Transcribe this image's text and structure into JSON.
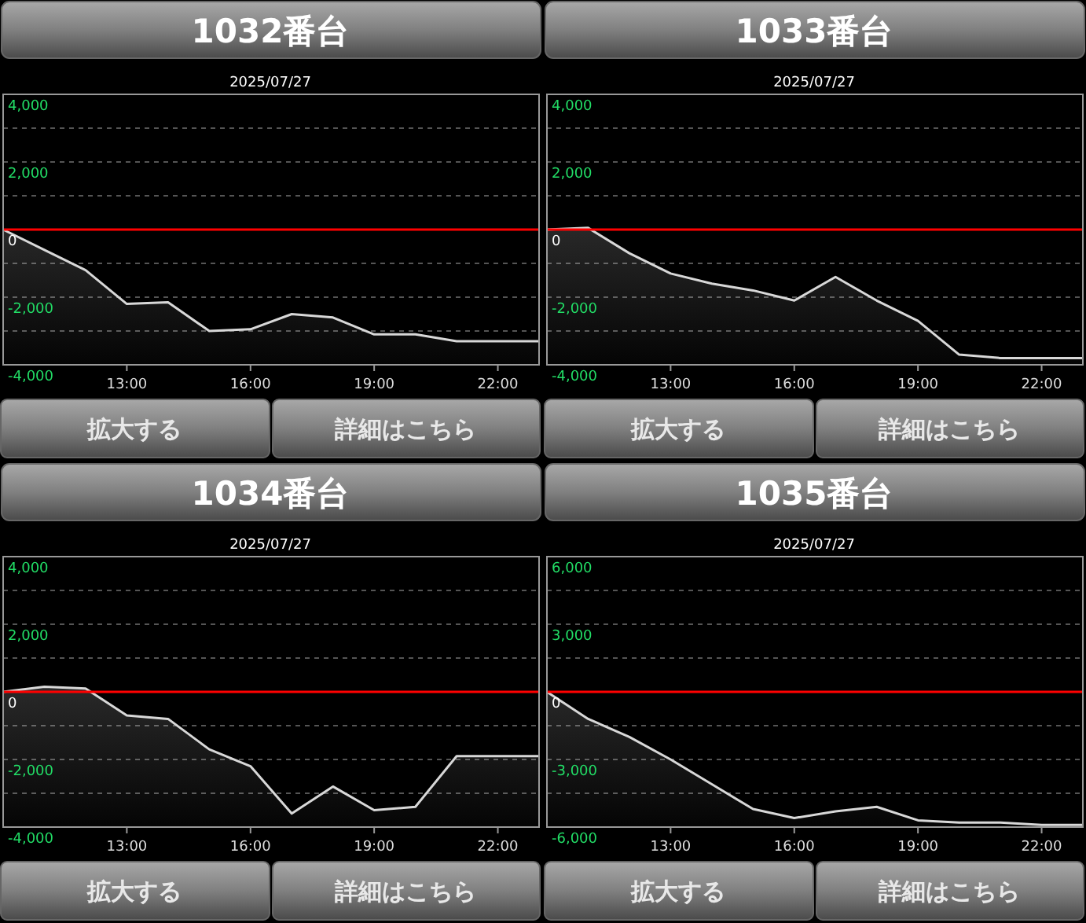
{
  "chart_data": [
    {
      "type": "line",
      "title": "1032番台",
      "subtitle": "2025/07/27",
      "x": [
        10,
        11,
        12,
        13,
        14,
        15,
        16,
        17,
        18,
        19,
        20,
        21,
        22,
        23
      ],
      "xlim": [
        10,
        23
      ],
      "xticks": [
        {
          "value": 13,
          "label": "13:00"
        },
        {
          "value": 16,
          "label": "16:00"
        },
        {
          "value": 19,
          "label": "19:00"
        },
        {
          "value": 22,
          "label": "22:00"
        }
      ],
      "ylim": [
        -4000,
        4000
      ],
      "yticks": [
        {
          "value": -4000,
          "label": "-4,000"
        },
        {
          "value": -3000,
          "label": null
        },
        {
          "value": -2000,
          "label": "-2,000"
        },
        {
          "value": -1000,
          "label": null
        },
        {
          "value": 0,
          "label": "0"
        },
        {
          "value": 1000,
          "label": null
        },
        {
          "value": 2000,
          "label": "2,000"
        },
        {
          "value": 3000,
          "label": null
        },
        {
          "value": 4000,
          "label": "4,000"
        }
      ],
      "grid": "y",
      "series": [
        {
          "color": "#d8d8d8",
          "values": [
            0,
            -600,
            -1200,
            -2200,
            -2150,
            -3000,
            -2950,
            -2500,
            -2600,
            -3100,
            -3100,
            -3300,
            -3300,
            -3300
          ]
        }
      ],
      "ref_lines": [
        {
          "axis": "y",
          "value": 0,
          "color": "#ff0000"
        }
      ],
      "annotations": [
        "拡大する",
        "詳細はこちら"
      ]
    },
    {
      "type": "line",
      "title": "1033番台",
      "subtitle": "2025/07/27",
      "x": [
        10,
        11,
        12,
        13,
        14,
        15,
        16,
        17,
        18,
        19,
        20,
        21,
        22,
        23
      ],
      "xlim": [
        10,
        23
      ],
      "xticks": [
        {
          "value": 13,
          "label": "13:00"
        },
        {
          "value": 16,
          "label": "16:00"
        },
        {
          "value": 19,
          "label": "19:00"
        },
        {
          "value": 22,
          "label": "22:00"
        }
      ],
      "ylim": [
        -4000,
        4000
      ],
      "yticks": [
        {
          "value": -4000,
          "label": "-4,000"
        },
        {
          "value": -3000,
          "label": null
        },
        {
          "value": -2000,
          "label": "-2,000"
        },
        {
          "value": -1000,
          "label": null
        },
        {
          "value": 0,
          "label": "0"
        },
        {
          "value": 1000,
          "label": null
        },
        {
          "value": 2000,
          "label": "2,000"
        },
        {
          "value": 3000,
          "label": null
        },
        {
          "value": 4000,
          "label": "4,000"
        }
      ],
      "grid": "y",
      "series": [
        {
          "color": "#d8d8d8",
          "values": [
            0,
            50,
            -700,
            -1300,
            -1600,
            -1800,
            -2100,
            -1400,
            -2100,
            -2700,
            -3700,
            -3800,
            -3800,
            -3800
          ]
        }
      ],
      "ref_lines": [
        {
          "axis": "y",
          "value": 0,
          "color": "#ff0000"
        }
      ],
      "annotations": [
        "拡大する",
        "詳細はこちら"
      ]
    },
    {
      "type": "line",
      "title": "1034番台",
      "subtitle": "2025/07/27",
      "x": [
        10,
        11,
        12,
        13,
        14,
        15,
        16,
        17,
        18,
        19,
        20,
        21,
        22,
        23
      ],
      "xlim": [
        10,
        23
      ],
      "xticks": [
        {
          "value": 13,
          "label": "13:00"
        },
        {
          "value": 16,
          "label": "16:00"
        },
        {
          "value": 19,
          "label": "19:00"
        },
        {
          "value": 22,
          "label": "22:00"
        }
      ],
      "ylim": [
        -4000,
        4000
      ],
      "yticks": [
        {
          "value": -4000,
          "label": "-4,000"
        },
        {
          "value": -3000,
          "label": null
        },
        {
          "value": -2000,
          "label": "-2,000"
        },
        {
          "value": -1000,
          "label": null
        },
        {
          "value": 0,
          "label": "0"
        },
        {
          "value": 1000,
          "label": null
        },
        {
          "value": 2000,
          "label": "2,000"
        },
        {
          "value": 3000,
          "label": null
        },
        {
          "value": 4000,
          "label": "4,000"
        }
      ],
      "grid": "y",
      "series": [
        {
          "color": "#d8d8d8",
          "values": [
            0,
            150,
            100,
            -700,
            -800,
            -1700,
            -2200,
            -3600,
            -2800,
            -3500,
            -3400,
            -1900,
            -1900,
            -1900
          ]
        }
      ],
      "ref_lines": [
        {
          "axis": "y",
          "value": 0,
          "color": "#ff0000"
        }
      ],
      "annotations": [
        "拡大する",
        "詳細はこちら"
      ]
    },
    {
      "type": "line",
      "title": "1035番台",
      "subtitle": "2025/07/27",
      "x": [
        10,
        11,
        12,
        13,
        14,
        15,
        16,
        17,
        18,
        19,
        20,
        21,
        22,
        23
      ],
      "xlim": [
        10,
        23
      ],
      "xticks": [
        {
          "value": 13,
          "label": "13:00"
        },
        {
          "value": 16,
          "label": "16:00"
        },
        {
          "value": 19,
          "label": "19:00"
        },
        {
          "value": 22,
          "label": "22:00"
        }
      ],
      "ylim": [
        -6000,
        6000
      ],
      "yticks": [
        {
          "value": -6000,
          "label": "-6,000"
        },
        {
          "value": -4500,
          "label": null
        },
        {
          "value": -3000,
          "label": "-3,000"
        },
        {
          "value": -1500,
          "label": null
        },
        {
          "value": 0,
          "label": "0"
        },
        {
          "value": 1500,
          "label": null
        },
        {
          "value": 3000,
          "label": "3,000"
        },
        {
          "value": 4500,
          "label": null
        },
        {
          "value": 6000,
          "label": "6,000"
        }
      ],
      "grid": "y",
      "series": [
        {
          "color": "#d8d8d8",
          "values": [
            0,
            -1200,
            -2000,
            -3000,
            -4100,
            -5200,
            -5600,
            -5300,
            -5100,
            -5700,
            -5800,
            -5800,
            -5900,
            -5900
          ]
        }
      ],
      "ref_lines": [
        {
          "axis": "y",
          "value": 0,
          "color": "#ff0000"
        }
      ],
      "annotations": [
        "拡大する",
        "詳細はこちら"
      ]
    }
  ]
}
